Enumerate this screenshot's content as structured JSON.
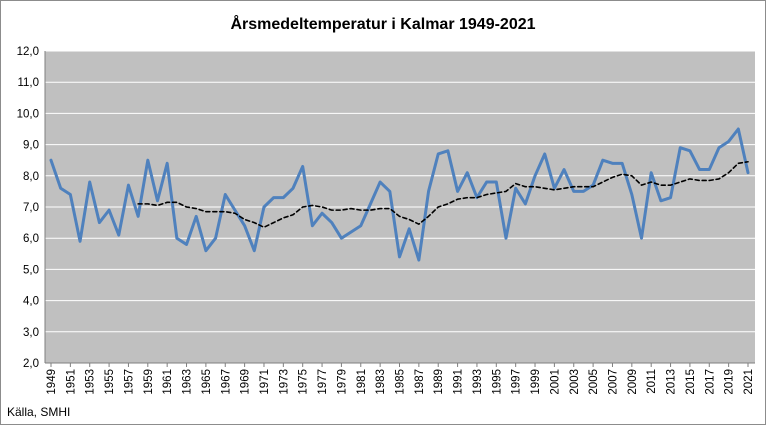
{
  "chart_data": {
    "type": "line",
    "title": "Årsmedeltemperatur i Kalmar 1949-2021",
    "xlabel": "",
    "ylabel": "",
    "ylim": [
      2.0,
      12.0
    ],
    "yticks": [
      "2,0",
      "3,0",
      "4,0",
      "5,0",
      "6,0",
      "7,0",
      "8,0",
      "9,0",
      "10,0",
      "11,0",
      "12,0"
    ],
    "xticks": [
      "1949",
      "1951",
      "1953",
      "1955",
      "1957",
      "1959",
      "1961",
      "1963",
      "1965",
      "1967",
      "1969",
      "1971",
      "1973",
      "1975",
      "1977",
      "1979",
      "1981",
      "1983",
      "1985",
      "1987",
      "1989",
      "1991",
      "1993",
      "1995",
      "1997",
      "1999",
      "2001",
      "2003",
      "2005",
      "2007",
      "2009",
      "2011",
      "2013",
      "2015",
      "2017",
      "2019",
      "2021"
    ],
    "grid": true,
    "legend": "none",
    "x": [
      1949,
      1950,
      1951,
      1952,
      1953,
      1954,
      1955,
      1956,
      1957,
      1958,
      1959,
      1960,
      1961,
      1962,
      1963,
      1964,
      1965,
      1966,
      1967,
      1968,
      1969,
      1970,
      1971,
      1972,
      1973,
      1974,
      1975,
      1976,
      1977,
      1978,
      1979,
      1980,
      1981,
      1982,
      1983,
      1984,
      1985,
      1986,
      1987,
      1988,
      1989,
      1990,
      1991,
      1992,
      1993,
      1994,
      1995,
      1996,
      1997,
      1998,
      1999,
      2000,
      2001,
      2002,
      2003,
      2004,
      2005,
      2006,
      2007,
      2008,
      2009,
      2010,
      2011,
      2012,
      2013,
      2014,
      2015,
      2016,
      2017,
      2018,
      2019,
      2020,
      2021
    ],
    "series": [
      {
        "style": "solid",
        "color": "#4f81bd",
        "values": [
          8.5,
          7.6,
          7.4,
          5.9,
          7.8,
          6.5,
          6.9,
          6.1,
          7.7,
          6.7,
          8.5,
          7.2,
          8.4,
          6.0,
          5.8,
          6.7,
          5.6,
          6.0,
          7.4,
          6.9,
          6.4,
          5.6,
          7.0,
          7.3,
          7.3,
          7.6,
          8.3,
          6.4,
          6.8,
          6.5,
          6.0,
          6.2,
          6.4,
          7.1,
          7.8,
          7.5,
          5.4,
          6.3,
          5.3,
          7.5,
          8.7,
          8.8,
          7.5,
          8.1,
          7.3,
          7.8,
          7.8,
          6.0,
          7.6,
          7.1,
          8.0,
          8.7,
          7.6,
          8.2,
          7.5,
          7.5,
          7.7,
          8.5,
          8.4,
          8.4,
          7.4,
          6.0,
          8.1,
          7.2,
          7.3,
          8.9,
          8.8,
          8.2,
          8.2,
          8.9,
          9.1,
          9.5,
          8.1
        ]
      },
      {
        "style": "dashed",
        "color": "#000000",
        "values": [
          null,
          null,
          null,
          null,
          null,
          null,
          null,
          null,
          null,
          7.1,
          7.1,
          7.05,
          7.15,
          7.15,
          7.0,
          6.95,
          6.85,
          6.85,
          6.85,
          6.8,
          6.6,
          6.5,
          6.35,
          6.5,
          6.65,
          6.75,
          7.0,
          7.05,
          7.0,
          6.9,
          6.9,
          6.95,
          6.9,
          6.9,
          6.95,
          6.95,
          6.7,
          6.6,
          6.45,
          6.7,
          7.0,
          7.1,
          7.25,
          7.3,
          7.3,
          7.4,
          7.45,
          7.5,
          7.75,
          7.65,
          7.65,
          7.6,
          7.55,
          7.6,
          7.65,
          7.65,
          7.65,
          7.8,
          7.95,
          8.05,
          8.0,
          7.7,
          7.8,
          7.7,
          7.7,
          7.8,
          7.9,
          7.85,
          7.85,
          7.9,
          8.1,
          8.4,
          8.45
        ]
      }
    ],
    "colors": {
      "plot_background": "#c0c0c0",
      "gridline": "#ffffff",
      "axis": "#7f7f7f"
    }
  },
  "source": "Källa, SMHI"
}
